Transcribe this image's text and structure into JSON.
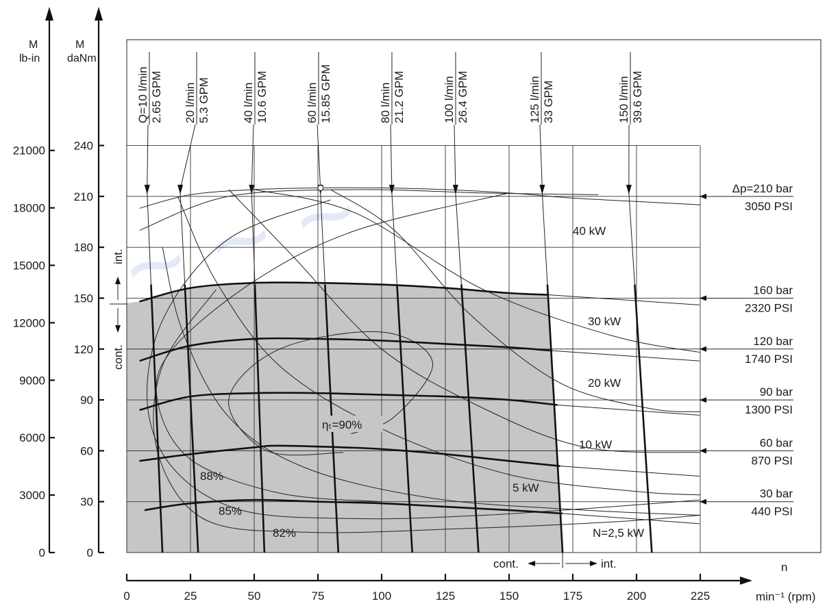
{
  "chart_data": {
    "type": "line",
    "title": "",
    "y_axis_primary": {
      "symbol": "M",
      "unit": "daNm",
      "range": [
        0,
        240
      ],
      "ticks": [
        "0",
        "30",
        "60",
        "90",
        "120",
        "150",
        "180",
        "210",
        "240"
      ]
    },
    "y_axis_secondary": {
      "symbol": "M",
      "unit": "lb-in",
      "ticks": [
        "0",
        "3000",
        "6000",
        "9000",
        "12000",
        "15000",
        "18000",
        "21000"
      ]
    },
    "x_axis": {
      "label": "min⁻¹ (rpm)",
      "symbol": "n",
      "range": [
        0,
        225
      ],
      "ticks": [
        "0",
        "25",
        "50",
        "75",
        "100",
        "125",
        "150",
        "175",
        "200",
        "225"
      ]
    },
    "flow_lines": [
      {
        "lpm": "Q=10 l/min",
        "gpm": "2.65 GPM",
        "rpm_top": 8,
        "rpm_bottom": 14
      },
      {
        "lpm": "20 l/min",
        "gpm": "5.3 GPM",
        "rpm_top": 21,
        "rpm_bottom": 28
      },
      {
        "lpm": "40 l/min",
        "gpm": "10.6 GPM",
        "rpm_top": 49,
        "rpm_bottom": 54
      },
      {
        "lpm": "60 l/min",
        "gpm": "15.85 GPM",
        "rpm_top": 76,
        "rpm_bottom": 83
      },
      {
        "lpm": "80 l/min",
        "gpm": "21.2 GPM",
        "rpm_top": 104,
        "rpm_bottom": 112
      },
      {
        "lpm": "100 l/min",
        "gpm": "26.4 GPM",
        "rpm_top": 129,
        "rpm_bottom": 138
      },
      {
        "lpm": "125 l/min",
        "gpm": "33 GPM",
        "rpm_top": 163,
        "rpm_bottom": 171
      },
      {
        "lpm": "150 l/min",
        "gpm": "39.6 GPM",
        "rpm_top": 197,
        "rpm_bottom": 206
      }
    ],
    "pressure_curves": [
      {
        "bar": "Δp=210 bar",
        "psi": "3050 PSI",
        "label_torque": 210,
        "points": [
          [
            5,
            203
          ],
          [
            25,
            211
          ],
          [
            50,
            214
          ],
          [
            75,
            215
          ],
          [
            100,
            215
          ],
          [
            125,
            214
          ],
          [
            150,
            212
          ],
          [
            175,
            209
          ],
          [
            200,
            207
          ],
          [
            225,
            205
          ]
        ]
      },
      {
        "bar": "160 bar",
        "psi": "2320 PSI",
        "label_torque": 150,
        "points": [
          [
            5,
            148
          ],
          [
            25,
            156
          ],
          [
            50,
            159
          ],
          [
            75,
            159
          ],
          [
            100,
            158
          ],
          [
            125,
            156
          ],
          [
            150,
            153
          ],
          [
            165,
            152
          ]
        ]
      },
      {
        "bar": "120 bar",
        "psi": "1740 PSI",
        "label_torque": 120,
        "points": [
          [
            5,
            113
          ],
          [
            25,
            122
          ],
          [
            50,
            126
          ],
          [
            75,
            126
          ],
          [
            100,
            125
          ],
          [
            125,
            123
          ],
          [
            150,
            121
          ],
          [
            167,
            119
          ]
        ]
      },
      {
        "bar": "90 bar",
        "psi": "1300 PSI",
        "label_torque": 90,
        "points": [
          [
            5,
            84
          ],
          [
            25,
            92
          ],
          [
            50,
            94
          ],
          [
            75,
            94
          ],
          [
            100,
            93
          ],
          [
            125,
            92
          ],
          [
            150,
            90
          ],
          [
            169,
            87
          ]
        ]
      },
      {
        "bar": "60 bar",
        "psi": "870 PSI",
        "label_torque": 60,
        "points": [
          [
            5,
            54
          ],
          [
            25,
            58
          ],
          [
            50,
            62
          ],
          [
            60,
            63
          ],
          [
            85,
            62
          ],
          [
            100,
            61
          ],
          [
            125,
            58
          ],
          [
            150,
            54
          ],
          [
            170,
            51
          ]
        ]
      },
      {
        "bar": "30 bar",
        "psi": "440 PSI",
        "label_torque": 30,
        "points": [
          [
            7,
            25
          ],
          [
            25,
            29
          ],
          [
            50,
            31
          ],
          [
            75,
            30
          ],
          [
            100,
            29
          ],
          [
            125,
            27
          ],
          [
            150,
            25
          ],
          [
            171,
            23
          ]
        ]
      }
    ],
    "power_labels": [
      "40 kW",
      "30 kW",
      "20 kW",
      "10 kW",
      "5 kW",
      "N=2,5 kW"
    ],
    "efficiency_labels": [
      "ηₜ=90%",
      "88%",
      "85%",
      "82%"
    ],
    "region_labels": {
      "int_v": "int.",
      "cont_v": "cont.",
      "cont_h": "cont.",
      "int_h": "int."
    },
    "cont_region_max_rpm": 171,
    "colors": {
      "continuous_region": "#c6c6c6",
      "lines": "#111111"
    }
  }
}
